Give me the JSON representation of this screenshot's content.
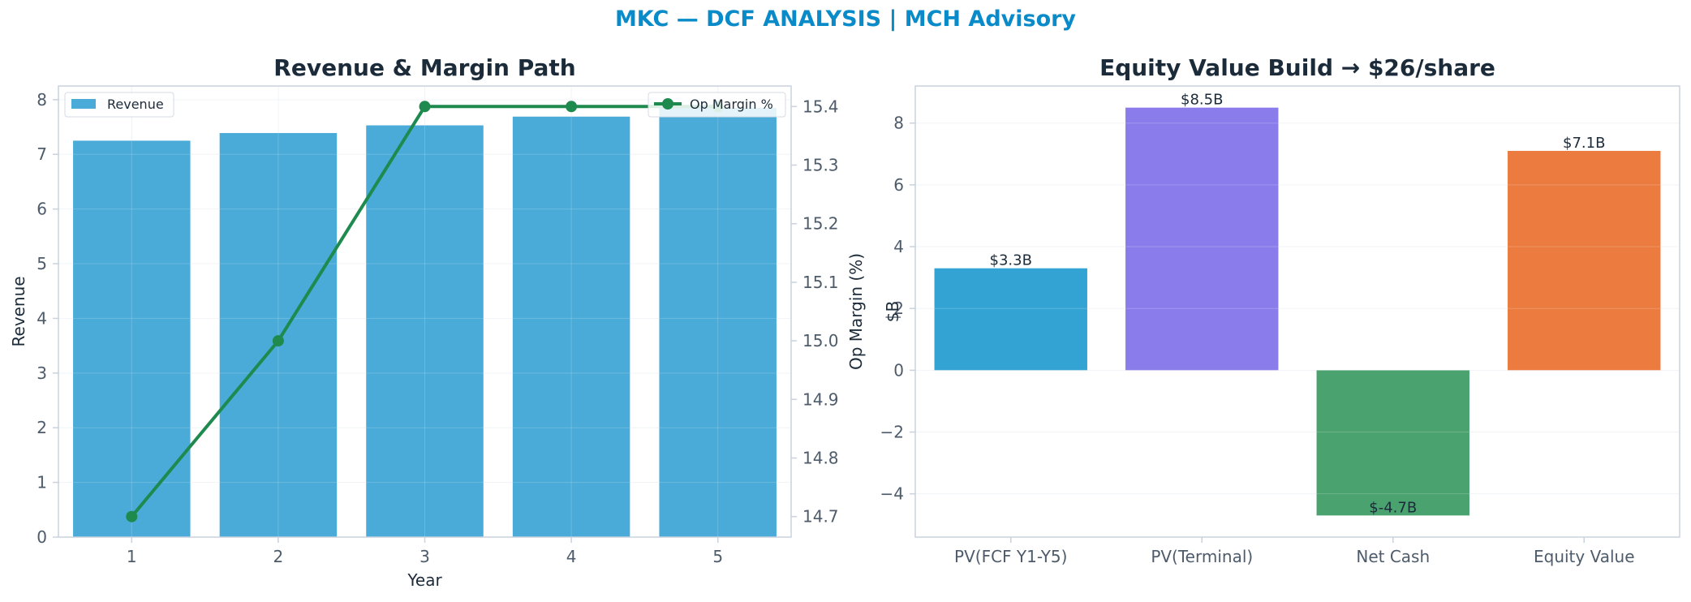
{
  "suptitle": "MKC — DCF ANALYSIS | MCH Advisory",
  "chart_data": [
    {
      "type": "bar+line",
      "title": "Revenue & Margin Path",
      "xlabel": "Year",
      "ylabel": "Revenue",
      "y2label": "Op Margin (%)",
      "categories": [
        "1",
        "2",
        "3",
        "4",
        "5"
      ],
      "ylim": [
        0,
        8.25
      ],
      "yticks": [
        "0",
        "1",
        "2",
        "3",
        "4",
        "5",
        "6",
        "7",
        "8"
      ],
      "y2lim": [
        14.665,
        15.435
      ],
      "y2ticks": [
        "14.7",
        "14.8",
        "14.9",
        "15.0",
        "15.1",
        "15.2",
        "15.3",
        "15.4"
      ],
      "series": [
        {
          "name": "Revenue",
          "kind": "bar",
          "axis": "left",
          "color": "#4aabd8",
          "values": [
            7.25,
            7.39,
            7.53,
            7.69,
            7.85
          ]
        },
        {
          "name": "Op Margin %",
          "kind": "line",
          "axis": "right",
          "color": "#1e8a4e",
          "values": [
            14.7,
            15.0,
            15.4,
            15.4,
            15.4
          ]
        }
      ],
      "legend_left": "top-left",
      "legend_right": "top-right",
      "grid": true
    },
    {
      "type": "bar",
      "title": "Equity Value Build → $26/share",
      "ylabel": "$B",
      "categories": [
        "PV(FCF Y1-Y5)",
        "PV(Terminal)",
        "Net Cash",
        "Equity Value"
      ],
      "values": [
        3.3,
        8.5,
        -4.7,
        7.1
      ],
      "data_labels": [
        "$3.3B",
        "$8.5B",
        "$-4.7B",
        "$7.1B"
      ],
      "colors": [
        "#33a3d4",
        "#8a7deb",
        "#4aa26e",
        "#ec7b3f"
      ],
      "ylim": [
        -5.4,
        9.2
      ],
      "yticks": [
        {
          "v": 8,
          "t": "8"
        },
        {
          "v": 6,
          "t": "6"
        },
        {
          "v": 4,
          "t": "4"
        },
        {
          "v": 2,
          "t": "2"
        },
        {
          "v": 0,
          "t": "0"
        },
        {
          "v": -2,
          "t": "−2"
        },
        {
          "v": -4,
          "t": "−4"
        }
      ],
      "grid": true
    }
  ]
}
